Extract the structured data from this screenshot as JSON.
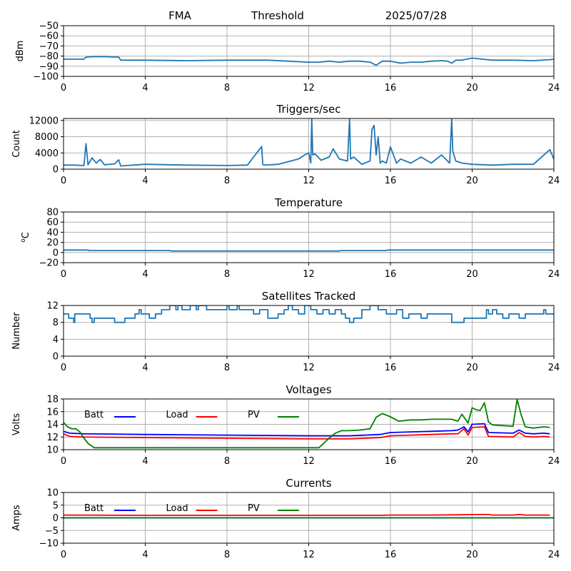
{
  "header": {
    "station": "FMA",
    "mode": "Threshold",
    "date": "2025/07/28"
  },
  "chart_data": [
    {
      "type": "line",
      "title": "",
      "ylabel": "dBm",
      "xlim": [
        0,
        24
      ],
      "ylim": [
        -100,
        -50
      ],
      "xticks": [
        0,
        4,
        8,
        12,
        16,
        20,
        24
      ],
      "yticks": [
        -100,
        -90,
        -80,
        -70,
        -60,
        -50
      ],
      "grid": true,
      "series": [
        {
          "color": "#1f77b4",
          "x": [
            0,
            0.5,
            1.0,
            1.1,
            1.5,
            2.0,
            2.5,
            2.7,
            2.8,
            4,
            6,
            8,
            10,
            11,
            12,
            12.5,
            13,
            13.5,
            14,
            14.5,
            15,
            15.3,
            15.6,
            16,
            16.5,
            17,
            17.5,
            18,
            18.5,
            18.8,
            19,
            19.2,
            19.5,
            20,
            20.5,
            21,
            22,
            23,
            23.8,
            24
          ],
          "y": [
            -83,
            -83,
            -83,
            -81,
            -80.5,
            -80.5,
            -81,
            -81,
            -84,
            -84,
            -84.5,
            -84,
            -84,
            -85,
            -86,
            -86,
            -85,
            -86,
            -85,
            -85,
            -86,
            -89,
            -85,
            -85,
            -87,
            -86,
            -86,
            -85,
            -84.5,
            -85,
            -87,
            -84,
            -84,
            -82,
            -83,
            -84,
            -84,
            -84.5,
            -83.5,
            -83
          ]
        }
      ]
    },
    {
      "type": "line",
      "title": "Triggers/sec",
      "ylabel": "Count",
      "xlim": [
        0,
        24
      ],
      "ylim": [
        0,
        12500
      ],
      "xticks": [
        0,
        4,
        8,
        12,
        16,
        20,
        24
      ],
      "yticks": [
        0,
        4000,
        8000,
        12000
      ],
      "grid": true,
      "series": [
        {
          "color": "#1f77b4",
          "x": [
            0,
            0.5,
            1.0,
            1.1,
            1.2,
            1.4,
            1.6,
            1.8,
            2.0,
            2.5,
            2.7,
            2.8,
            4,
            6,
            8,
            9,
            9.7,
            9.75,
            9.8,
            10.5,
            11.5,
            11.8,
            12.0,
            12.1,
            12.15,
            12.2,
            12.3,
            12.6,
            13.0,
            13.2,
            13.5,
            13.9,
            14.0,
            14.05,
            14.2,
            14.6,
            15.0,
            15.1,
            15.2,
            15.3,
            15.4,
            15.5,
            15.6,
            15.8,
            16.0,
            16.3,
            16.5,
            17.0,
            17.5,
            18.0,
            18.5,
            18.9,
            19.0,
            19.05,
            19.2,
            19.5,
            20,
            21,
            22,
            23,
            23.8,
            24
          ],
          "y": [
            1000,
            1000,
            900,
            6300,
            1100,
            2800,
            1500,
            2400,
            1100,
            1300,
            2300,
            800,
            1200,
            1000,
            900,
            1000,
            5600,
            1200,
            1000,
            1200,
            2500,
            3500,
            4000,
            1500,
            12500,
            3500,
            3800,
            2200,
            3000,
            5000,
            2500,
            2000,
            12500,
            2500,
            3000,
            1200,
            2000,
            9800,
            10800,
            3500,
            8000,
            1500,
            2000,
            1500,
            5500,
            1500,
            2500,
            1500,
            3000,
            1500,
            3500,
            1500,
            12500,
            4500,
            2000,
            1500,
            1200,
            1000,
            1200,
            1200,
            4800,
            2500
          ]
        }
      ]
    },
    {
      "type": "line",
      "title": "Temperature",
      "ylabel": "°C",
      "ylabel_base": "C",
      "ylabel_sup": "o",
      "xlim": [
        0,
        24
      ],
      "ylim": [
        -20,
        80
      ],
      "xticks": [
        0,
        4,
        8,
        12,
        16,
        20,
        24
      ],
      "yticks": [
        -20,
        0,
        20,
        40,
        60,
        80
      ],
      "grid": true,
      "series": [
        {
          "color": "#1f77b4",
          "x": [
            0,
            1.2,
            1.25,
            5.2,
            5.25,
            13.5,
            13.55,
            15.8,
            15.85,
            24
          ],
          "y": [
            5,
            5,
            4,
            4,
            3,
            3,
            4,
            4,
            5,
            5
          ]
        }
      ]
    },
    {
      "type": "line",
      "step": true,
      "title": "Satellites Tracked",
      "ylabel": "Number",
      "xlim": [
        0,
        24
      ],
      "ylim": [
        0,
        12
      ],
      "xticks": [
        0,
        4,
        8,
        12,
        16,
        20,
        24
      ],
      "yticks": [
        0,
        4,
        8,
        12
      ],
      "grid": true,
      "series": [
        {
          "color": "#1f77b4",
          "x": [
            0,
            0.25,
            0.45,
            0.5,
            0.55,
            0.8,
            1.3,
            1.4,
            1.5,
            2.0,
            2.5,
            2.6,
            3.0,
            3.2,
            3.5,
            3.7,
            3.8,
            4.2,
            4.5,
            4.8,
            4.9,
            5.2,
            5.5,
            5.6,
            5.8,
            6.2,
            6.5,
            6.6,
            7.0,
            7.5,
            8.0,
            8.1,
            8.2,
            8.5,
            8.6,
            9.0,
            9.3,
            9.6,
            10.0,
            10.5,
            10.8,
            11.0,
            11.2,
            11.5,
            11.8,
            12.0,
            12.1,
            12.4,
            12.7,
            13.0,
            13.3,
            13.6,
            13.8,
            14.0,
            14.2,
            14.6,
            15.0,
            15.1,
            15.4,
            15.8,
            16.0,
            16.3,
            16.6,
            16.9,
            17.1,
            17.5,
            17.8,
            18.0,
            18.5,
            19.0,
            19.5,
            19.6,
            20.0,
            20.5,
            20.7,
            20.8,
            21.0,
            21.2,
            21.5,
            21.8,
            22.0,
            22.3,
            22.6,
            23.0,
            23.5,
            23.6,
            23.8,
            24
          ],
          "y": [
            10,
            9,
            9,
            8,
            10,
            10,
            9,
            8,
            9,
            9,
            8,
            8,
            9,
            9,
            10,
            11,
            10,
            9,
            10,
            11,
            11,
            12,
            11,
            12,
            11,
            12,
            11,
            12,
            11,
            11,
            12,
            11,
            11,
            12,
            11,
            11,
            10,
            11,
            9,
            10,
            11,
            12,
            11,
            10,
            12,
            12,
            11,
            10,
            11,
            10,
            11,
            10,
            9,
            8,
            9,
            11,
            12,
            12,
            11,
            10,
            10,
            11,
            9,
            10,
            10,
            9,
            10,
            10,
            10,
            8,
            8,
            9,
            9,
            9,
            11,
            10,
            11,
            10,
            9,
            10,
            10,
            9,
            10,
            10,
            11,
            10,
            10,
            10
          ]
        }
      ]
    },
    {
      "type": "line",
      "title": "Voltages",
      "ylabel": "Volts",
      "xlim": [
        0,
        24
      ],
      "ylim": [
        10,
        18
      ],
      "xticks": [
        0,
        4,
        8,
        12,
        16,
        20,
        24
      ],
      "yticks": [
        10,
        12,
        14,
        16,
        18
      ],
      "grid": true,
      "legend": "inline-top-left",
      "series": [
        {
          "name": "Batt",
          "color": "#0000ff",
          "x": [
            0,
            0.3,
            1,
            4,
            8,
            12,
            14,
            15.5,
            16,
            17,
            18,
            19,
            19.3,
            19.6,
            19.8,
            20,
            20.6,
            20.8,
            22,
            22.3,
            22.6,
            23,
            23.5,
            23.8
          ],
          "y": [
            12.9,
            12.6,
            12.5,
            12.4,
            12.3,
            12.2,
            12.2,
            12.4,
            12.7,
            12.8,
            12.9,
            13,
            13.1,
            13.6,
            12.8,
            14.0,
            14.1,
            12.7,
            12.6,
            13.1,
            12.6,
            12.5,
            12.6,
            12.5
          ]
        },
        {
          "name": "Load",
          "color": "#ff0000",
          "x": [
            0,
            0.3,
            1,
            4,
            8,
            12,
            14,
            15.5,
            16,
            17,
            18,
            19,
            19.3,
            19.6,
            19.8,
            20,
            20.6,
            20.8,
            22,
            22.3,
            22.6,
            23,
            23.5,
            23.8
          ],
          "y": [
            12.5,
            12.1,
            12.0,
            11.9,
            11.8,
            11.7,
            11.7,
            11.9,
            12.2,
            12.3,
            12.4,
            12.5,
            12.5,
            13.3,
            12.3,
            13.5,
            13.6,
            12.1,
            12.0,
            12.7,
            12.1,
            12.0,
            12.1,
            12.0
          ]
        },
        {
          "name": "PV",
          "color": "#008000",
          "x": [
            0,
            0.2,
            0.4,
            0.6,
            0.8,
            1.0,
            1.2,
            1.5,
            12.5,
            12.7,
            13,
            13.3,
            13.6,
            14,
            14.5,
            15,
            15.3,
            15.6,
            16,
            16.4,
            17,
            17.5,
            18,
            18.5,
            19,
            19.3,
            19.5,
            19.8,
            20.0,
            20.2,
            20.4,
            20.6,
            20.8,
            21.0,
            21.5,
            22,
            22.2,
            22.4,
            22.6,
            23,
            23.5,
            23.8
          ],
          "y": [
            14.3,
            13.6,
            13.3,
            13.3,
            12.8,
            11.8,
            11.0,
            10.3,
            10.3,
            10.9,
            11.8,
            12.6,
            13.0,
            13.0,
            13.1,
            13.3,
            15.1,
            15.7,
            15.2,
            14.5,
            14.7,
            14.7,
            14.8,
            14.8,
            14.8,
            14.5,
            15.6,
            14.2,
            16.6,
            16.3,
            16.2,
            17.4,
            14.4,
            13.9,
            13.8,
            13.7,
            17.9,
            15.5,
            13.6,
            13.4,
            13.6,
            13.5
          ]
        }
      ]
    },
    {
      "type": "line",
      "title": "Currents",
      "ylabel": "Amps",
      "xlim": [
        0,
        24
      ],
      "ylim": [
        -10,
        10
      ],
      "xticks": [
        0,
        4,
        8,
        12,
        16,
        20,
        24
      ],
      "yticks": [
        -10,
        -5,
        0,
        5,
        10
      ],
      "grid": true,
      "legend": "inline-top-left",
      "series": [
        {
          "name": "Batt",
          "color": "#0000ff",
          "x": [
            0,
            24
          ],
          "y": [
            0,
            0
          ]
        },
        {
          "name": "Load",
          "color": "#ff0000",
          "x": [
            0,
            4,
            8,
            12,
            15.5,
            16,
            18,
            19.5,
            20,
            20.8,
            21,
            22,
            22.3,
            22.6,
            23.8
          ],
          "y": [
            1.1,
            1.0,
            1.0,
            1.0,
            1.0,
            1.1,
            1.1,
            1.2,
            1.3,
            1.3,
            1.1,
            1.1,
            1.3,
            1.1,
            1.1
          ]
        },
        {
          "name": "PV",
          "color": "#008000",
          "x": [
            0,
            24
          ],
          "y": [
            0,
            0
          ]
        }
      ]
    }
  ]
}
